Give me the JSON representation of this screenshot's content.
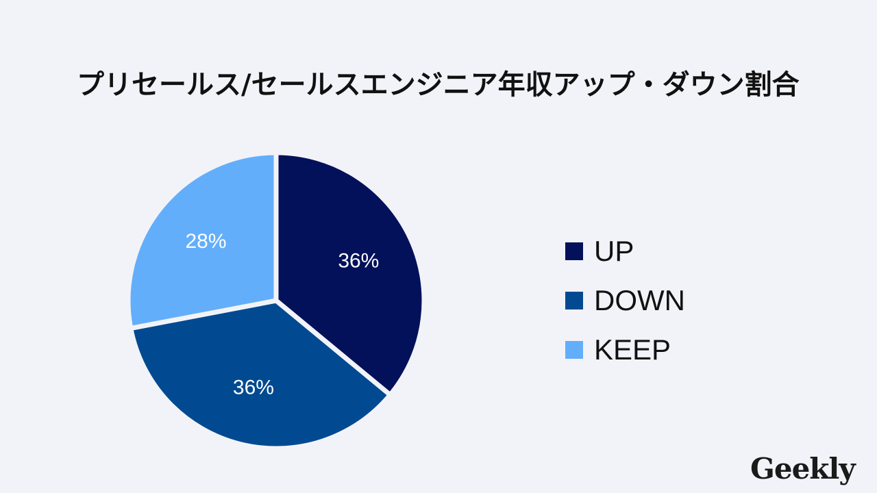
{
  "chart_data": {
    "type": "pie",
    "title": "プリセールス/セールスエンジニア年収アップ・ダウン割合",
    "slices": [
      {
        "name": "UP",
        "value": 36,
        "label": "36%",
        "color": "#02115a"
      },
      {
        "name": "DOWN",
        "value": 36,
        "label": "36%",
        "color": "#014a91"
      },
      {
        "name": "KEEP",
        "value": 28,
        "label": "28%",
        "color": "#63aefb"
      }
    ],
    "legend_position": "right"
  },
  "legend": {
    "items": [
      {
        "label": "UP",
        "color": "#02115a"
      },
      {
        "label": "DOWN",
        "color": "#014a91"
      },
      {
        "label": "KEEP",
        "color": "#63aefb"
      }
    ]
  },
  "brand": {
    "logo_text": "Geekly"
  }
}
